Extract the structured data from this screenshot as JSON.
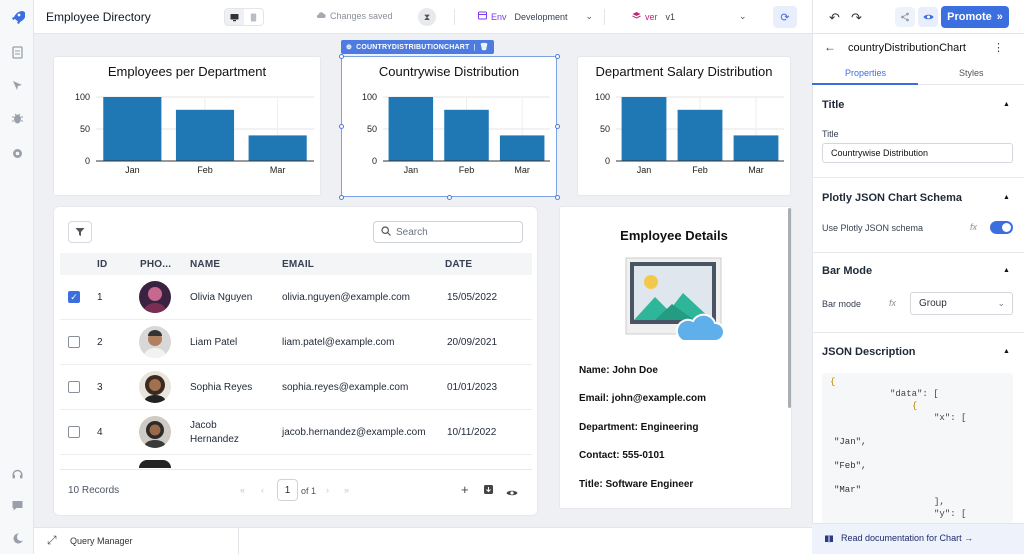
{
  "header": {
    "app_title": "Employee Directory",
    "status": "Changes saved",
    "env_key": "Env",
    "env_value": "Development",
    "ver_key": "ver",
    "ver_value": "v1",
    "promote_label": "Promote",
    "icons": [
      "rocket-icon",
      "desktop-icon",
      "mobile-icon",
      "cloud-icon",
      "history-icon",
      "sync-icon",
      "undo-icon",
      "redo-icon",
      "share-icon",
      "preview-icon"
    ]
  },
  "charts": [
    {
      "title": "Employees per Department"
    },
    {
      "title": "Countrywise Distribution"
    },
    {
      "title": "Department Salary Distribution"
    }
  ],
  "selected_tag": "COUNTRYDISTRIBUTIONCHART",
  "chart_data": [
    {
      "type": "bar",
      "title": "Employees per Department",
      "categories": [
        "Jan",
        "Feb",
        "Mar"
      ],
      "values": [
        100,
        80,
        40
      ],
      "ylim": [
        0,
        100
      ],
      "yticks": [
        "0",
        "50",
        "100"
      ],
      "grid": true
    },
    {
      "type": "bar",
      "title": "Countrywise Distribution",
      "categories": [
        "Jan",
        "Feb",
        "Mar"
      ],
      "values": [
        100,
        80,
        40
      ],
      "ylim": [
        0,
        100
      ],
      "yticks": [
        "0",
        "50",
        "100"
      ],
      "grid": true
    },
    {
      "type": "bar",
      "title": "Department Salary Distribution",
      "categories": [
        "Jan",
        "Feb",
        "Mar"
      ],
      "values": [
        100,
        80,
        40
      ],
      "ylim": [
        0,
        100
      ],
      "yticks": [
        "0",
        "50",
        "100"
      ],
      "grid": true
    }
  ],
  "table": {
    "search_placeholder": "Search",
    "columns": [
      "ID",
      "PHO...",
      "NAME",
      "EMAIL",
      "DATE"
    ],
    "rows": [
      {
        "checked": true,
        "id": "1",
        "name": "Olivia Nguyen",
        "email": "olivia.nguyen@example.com",
        "date": "15/05/2022"
      },
      {
        "checked": false,
        "id": "2",
        "name": "Liam Patel",
        "email": "liam.patel@example.com",
        "date": "20/09/2021"
      },
      {
        "checked": false,
        "id": "3",
        "name": "Sophia Reyes",
        "email": "sophia.reyes@example.com",
        "date": "01/01/2023"
      },
      {
        "checked": false,
        "id": "4",
        "name": "Jacob Hernandez",
        "email": "jacob.hernandez@example.com",
        "date": "10/11/2022"
      }
    ],
    "records": "10 Records",
    "page": "1",
    "of_pages": "of 1"
  },
  "details": {
    "title": "Employee Details",
    "name": "Name: John Doe",
    "email": "Email: john@example.com",
    "department": "Department: Engineering",
    "contact": "Contact: 555-0101",
    "title_line": "Title: Software Engineer"
  },
  "panel": {
    "component_name": "countryDistributionChart",
    "tab_properties": "Properties",
    "tab_styles": "Styles",
    "title_section": "Title",
    "title_label": "Title",
    "title_value": "Countrywise Distribution",
    "schema_section": "Plotly JSON Chart Schema",
    "schema_label": "Use Plotly JSON schema",
    "schema_enabled": true,
    "barmode_section": "Bar Mode",
    "barmode_label": "Bar mode",
    "barmode_value": "Group",
    "json_section": "JSON Description",
    "json_lines": [
      "{",
      "\"data\": [",
      "{",
      "\"x\": [",
      "\"Jan\",",
      "\"Feb\",",
      "\"Mar\"",
      "],",
      "\"y\": ["
    ],
    "docs_link": "Read documentation for Chart",
    "fx": "fx"
  },
  "footer": {
    "query_manager": "Query Manager"
  },
  "colors": {
    "bar": "#1f77b4",
    "accent": "#3b6fe0",
    "env": "#7c3aed"
  }
}
